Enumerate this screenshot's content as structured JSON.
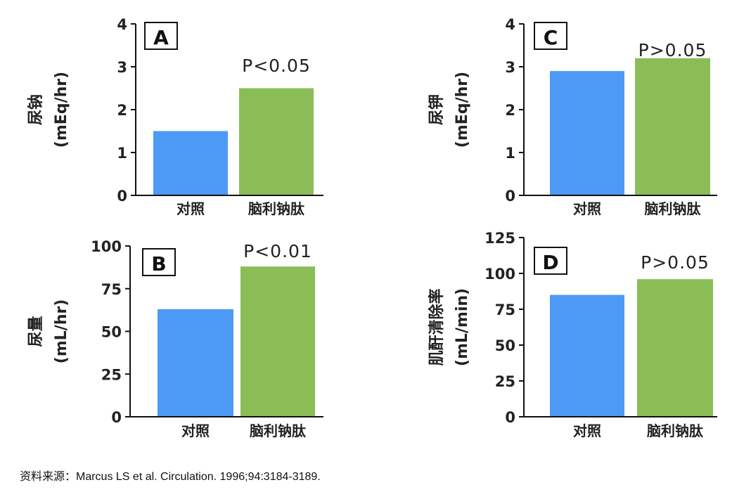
{
  "colors": {
    "control": "#4c9af5",
    "treatment": "#8bbd57",
    "axis": "#111111"
  },
  "chart_data": [
    {
      "type": "bar",
      "panel": "A",
      "ylabel": "尿钠",
      "yunit": "(mEq/hr)",
      "categories": [
        "对照",
        "脑利钠肽"
      ],
      "values": [
        1.5,
        2.5
      ],
      "ylim": [
        0,
        4
      ],
      "yticks": [
        0,
        1,
        2,
        3,
        4
      ],
      "annotation": "P<0.05",
      "grid": false
    },
    {
      "type": "bar",
      "panel": "B",
      "ylabel": "尿量",
      "yunit": "(mL/hr)",
      "categories": [
        "对照",
        "脑利钠肽"
      ],
      "values": [
        63,
        88
      ],
      "ylim": [
        0,
        100
      ],
      "yticks": [
        0,
        25,
        50,
        75,
        100
      ],
      "annotation": "P<0.01",
      "grid": false
    },
    {
      "type": "bar",
      "panel": "C",
      "ylabel": "尿钾",
      "yunit": "(mEq/hr)",
      "categories": [
        "对照",
        "脑利钠肽"
      ],
      "values": [
        2.9,
        3.2
      ],
      "ylim": [
        0,
        4
      ],
      "yticks": [
        0,
        1,
        2,
        3,
        4
      ],
      "annotation": "P>0.05",
      "grid": false
    },
    {
      "type": "bar",
      "panel": "D",
      "ylabel": "肌酐清除率",
      "yunit": "(mL/min)",
      "categories": [
        "对照",
        "脑利钠肽"
      ],
      "values": [
        85,
        96
      ],
      "ylim": [
        0,
        125
      ],
      "yticks": [
        0,
        25,
        50,
        75,
        100,
        125
      ],
      "annotation": "P>0.05",
      "grid": false
    }
  ],
  "footer": {
    "source": "资料来源：Marcus LS et al.  Circulation. 1996;94:3184-3189."
  }
}
